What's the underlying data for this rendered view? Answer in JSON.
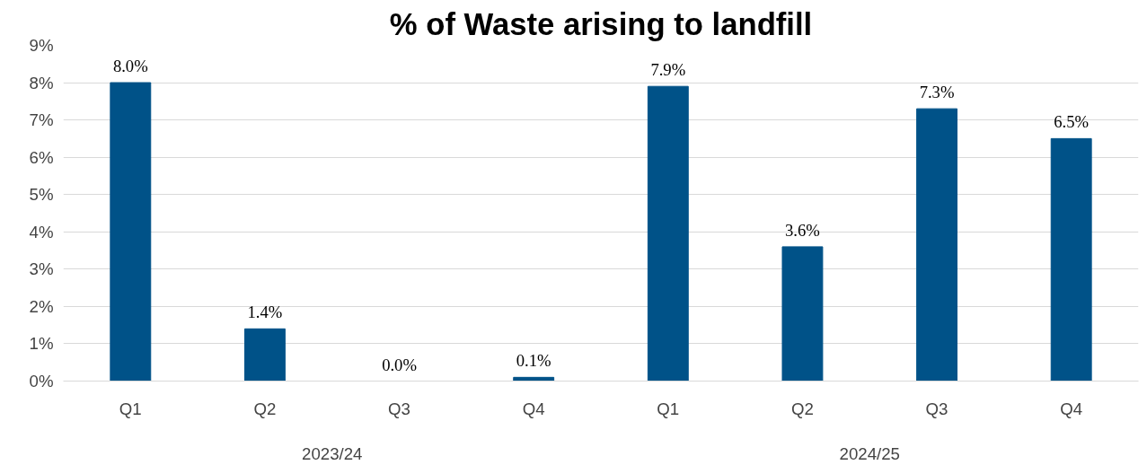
{
  "chart_data": {
    "type": "bar",
    "title": "% of Waste arising to landfill",
    "categories": [
      "Q1",
      "Q2",
      "Q3",
      "Q4",
      "Q1",
      "Q2",
      "Q3",
      "Q4"
    ],
    "values": [
      8.0,
      1.4,
      0.0,
      0.1,
      7.9,
      3.6,
      7.3,
      6.5
    ],
    "value_labels": [
      "8.0%",
      "1.4%",
      "0.0%",
      "0.1%",
      "7.9%",
      "3.6%",
      "7.3%",
      "6.5%"
    ],
    "color": "#005288",
    "ylim": [
      0,
      9
    ],
    "yticks": [
      {
        "value": 0,
        "label": "0%"
      },
      {
        "value": 1,
        "label": "1%"
      },
      {
        "value": 2,
        "label": "2%"
      },
      {
        "value": 3,
        "label": "3%"
      },
      {
        "value": 4,
        "label": "4%"
      },
      {
        "value": 5,
        "label": "5%"
      },
      {
        "value": 6,
        "label": "6%"
      },
      {
        "value": 7,
        "label": "7%"
      },
      {
        "value": 8,
        "label": "8%"
      },
      {
        "value": 9,
        "label": "9%"
      }
    ],
    "annotations": [
      "2023/24",
      "2024/25"
    ],
    "grid": "y"
  }
}
